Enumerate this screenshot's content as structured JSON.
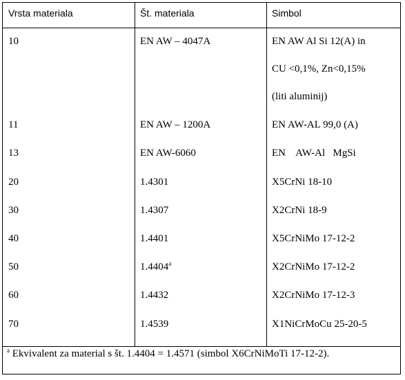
{
  "headers": [
    "Vrsta materiala",
    "Št. materiala",
    "Simbol"
  ],
  "rows": [
    {
      "vrsta": "10",
      "st": "EN AW – 4047A",
      "sup": "",
      "simbol_lines": [
        "EN AW Al Si 12(A) in",
        "CU <0,1%, Zn<0,15%",
        "(liti aluminij)"
      ]
    },
    {
      "vrsta": "11",
      "st": "EN AW – 1200A",
      "sup": "",
      "simbol_lines": [
        "EN AW-AL 99,0 (A)"
      ]
    },
    {
      "vrsta": "13",
      "st": "EN AW-6060",
      "sup": "",
      "simbol_lines": [
        "EN    AW-Al   MgSi"
      ]
    },
    {
      "vrsta": "20",
      "st": "1.4301",
      "sup": "",
      "simbol_lines": [
        "X5CrNi 18-10"
      ]
    },
    {
      "vrsta": "30",
      "st": "1.4307",
      "sup": "",
      "simbol_lines": [
        "X2CrNi 18-9"
      ]
    },
    {
      "vrsta": "40",
      "st": "1.4401",
      "sup": "",
      "simbol_lines": [
        "X5CrNiMo 17-12-2"
      ]
    },
    {
      "vrsta": "50",
      "st": "1.4404",
      "sup": "a",
      "simbol_lines": [
        "X2CrNiMo 17-12-2"
      ]
    },
    {
      "vrsta": "60",
      "st": "1.4432",
      "sup": "",
      "simbol_lines": [
        "X2CrNiMo 17-12-3"
      ]
    },
    {
      "vrsta": "70",
      "st": "1.4539",
      "sup": "",
      "simbol_lines": [
        "X1NiCrMoCu 25-20-5"
      ]
    }
  ],
  "footnote": {
    "marker": "a",
    "text": " Ekvivalent za material s št. 1.4404 = 1.4571 (simbol X6CrNiMoTi 17-12-2)."
  }
}
